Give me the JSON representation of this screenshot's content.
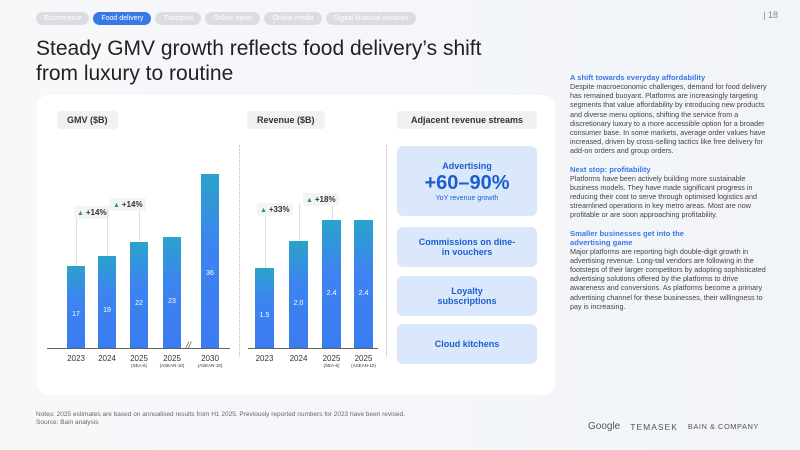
{
  "tabs": [
    "Ecommerce",
    "Food delivery",
    "Transport",
    "Online travel",
    "Online media",
    "Digital financial services"
  ],
  "active_tab": "Food delivery",
  "page_number": "| 18",
  "title": "Steady GMV growth reflects food delivery’s shift from luxury to routine",
  "chart_data": [
    {
      "type": "bar",
      "title": "GMV ($B)",
      "categories": [
        "2023",
        "2024",
        "2025 (SEA-6)",
        "2025 (ASEAN-10)",
        "2030 (ASEAN-10)"
      ],
      "values": [
        17,
        19,
        22,
        23,
        36
      ],
      "value_labels": [
        "17",
        "19",
        "22",
        "23",
        "36"
      ],
      "growth_labels": [
        "+14%",
        "+14%"
      ],
      "axis_break": "between 2025 (ASEAN-10) and 2030"
    },
    {
      "type": "bar",
      "title": "Revenue ($B)",
      "categories": [
        "2023",
        "2024",
        "2025 (SEA-6)",
        "2025 (ASEAN-10)"
      ],
      "values": [
        1.5,
        2.0,
        2.4,
        2.4
      ],
      "value_labels": [
        "1.5",
        "2.0",
        "2.4",
        "2.4"
      ],
      "growth_labels": [
        "+33%",
        "+18%"
      ]
    }
  ],
  "adjacent": {
    "title": "Adjacent revenue streams",
    "advertising": {
      "label": "Advertising",
      "value": "+60–90%",
      "sub": "YoY revenue growth"
    },
    "items": [
      "Commissions on dine-in vouchers",
      "Loyalty subscriptions",
      "Cloud kitchens"
    ]
  },
  "side": [
    {
      "h": "A shift towards everyday affordability",
      "p": "Despite macroeconomic challenges, demand for food delivery has remained buoyant. Platforms are increasingly targeting segments that value affordability by introducing new products and diverse menu options, shifting the service from a discretionary luxury to a more accessible option for a broader consumer base. In some markets, average order values have increased, driven by cross-selling tactics like free delivery for add-on orders and group orders."
    },
    {
      "h": "Next stop: profitability",
      "p": "Platforms have been actively building more sustainable business models. They have made significant progress in reducing their cost to serve through optimised logistics and streamlined operations in key metro areas. Most are now profitable or are soon approaching profitability."
    },
    {
      "h": "Smaller businesses get into the advertising game",
      "p": "Major platforms are reporting high double-digit growth in advertising revenue. Long-tail vendors are following in the footsteps of their larger competitors by adopting sophisticated advertising solutions offered by the platforms to drive awareness and conversions. As platforms become a primary advertising channel for these businesses, their willingness to pay is increasing."
    }
  ],
  "notes": "Notes: 2025 estimates are based on annualised results from H1 2025. Previously reported numbers for 2023 have been revised.",
  "source": "Source: Bain analysis",
  "logos": [
    "Google",
    "TEMASEK",
    "BAIN & COMPANY"
  ],
  "colors": {
    "accent": "#3b78e7",
    "bar": "#3b7bf0",
    "growth": "#2f9e44"
  }
}
